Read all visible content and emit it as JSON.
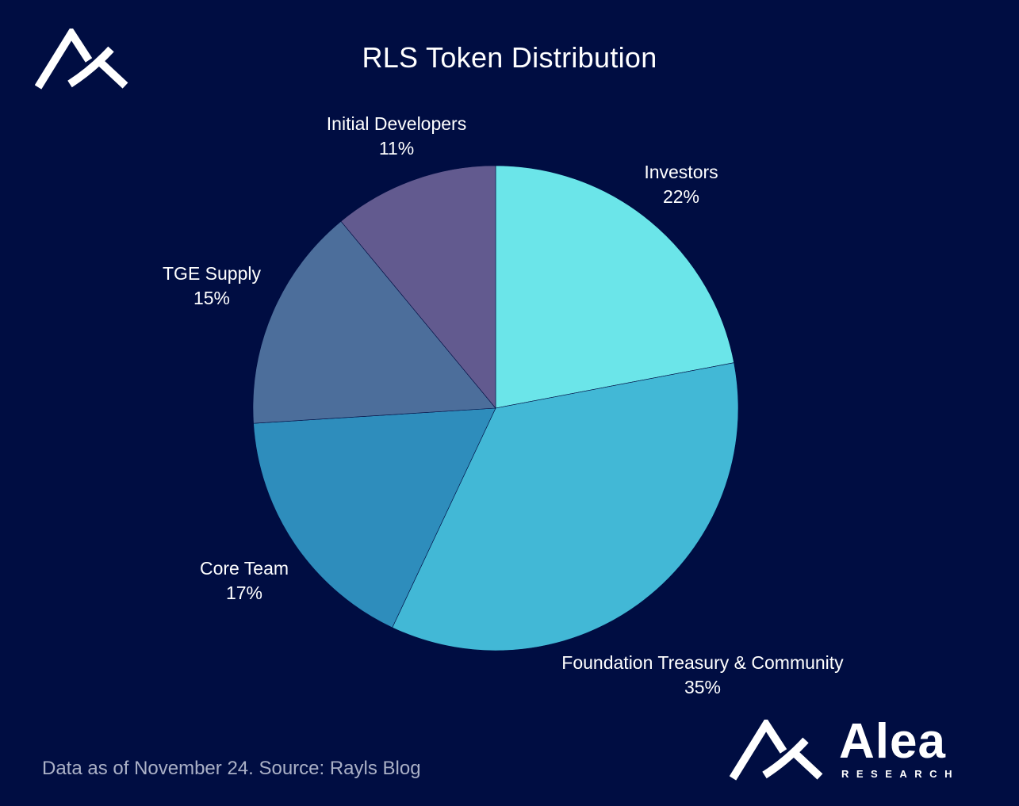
{
  "chart_data": {
    "type": "pie",
    "title": "RLS Token Distribution",
    "categories": [
      "Investors",
      "Foundation Treasury & Community",
      "Core Team",
      "TGE Supply",
      "Initial Developers"
    ],
    "values": [
      22,
      35,
      17,
      15,
      11
    ],
    "value_labels": [
      "22%",
      "35%",
      "17%",
      "15%",
      "11%"
    ],
    "colors": [
      "#6be5e9",
      "#42b8d6",
      "#2e8dbc",
      "#4c6e9b",
      "#625a8f"
    ],
    "start_angle": "12 o'clock",
    "direction": "clockwise",
    "legend": "none",
    "labels_position": "outside"
  },
  "footnote": "Data as of November 24. Source: Rayls Blog",
  "brand": {
    "name": "Alea",
    "sub": "RESEARCH",
    "logo_icon": "alea-logo-icon"
  },
  "colors": {
    "background": "#000d42",
    "text": "#ffffff",
    "footnote": "#aab0c6"
  }
}
